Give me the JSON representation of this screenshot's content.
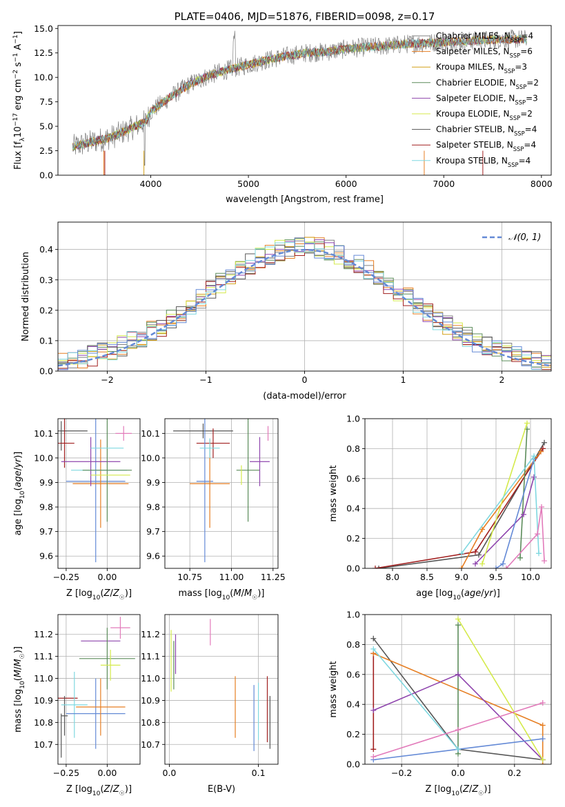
{
  "colors": {
    "Chabrier MILES": "#808080",
    "Salpeter MILES": "#e67e22",
    "Kroupa MILES": "#d4a017",
    "Chabrier ELODIE": "#5b8c5a",
    "Salpeter ELODIE": "#8e44ad",
    "Kroupa ELODIE": "#d4ea4a",
    "Chabrier STELIB": "#555555",
    "Salpeter STELIB": "#a11f1f",
    "Kroupa STELIB": "#7fd8e0",
    "blue": "#6389d6",
    "pink": "#e27aba",
    "normal": "#6389d6"
  },
  "chart_data": [
    {
      "id": "spectrum",
      "type": "line",
      "title": "PLATE=0406, MJD=51876, FIBERID=0098, z=0.17",
      "xlabel": "wavelength [Angstrom, rest frame]",
      "ylabel": "Flux [f_λ10^-17 erg cm^-2 s^-1 A^-1]",
      "xlim": [
        3050,
        8100
      ],
      "ylim": [
        0,
        15.3
      ],
      "xticks": [
        4000,
        5000,
        6000,
        7000,
        8000
      ],
      "yticks": [
        0.0,
        2.5,
        5.0,
        7.5,
        10.0,
        12.5,
        15.0
      ],
      "grid": false,
      "legend_position": "top-right",
      "legend": [
        {
          "label": "Chabrier MILES, N",
          "sub": "SSP",
          "n": "=4",
          "color": "#808080"
        },
        {
          "label": "Salpeter MILES, N",
          "sub": "SSP",
          "n": "=6",
          "color": "#e67e22"
        },
        {
          "label": "Kroupa MILES, N",
          "sub": "SSP",
          "n": "=3",
          "color": "#d4a017"
        },
        {
          "label": "Chabrier ELODIE, N",
          "sub": "SSP",
          "n": "=2",
          "color": "#5b8c5a"
        },
        {
          "label": "Salpeter ELODIE, N",
          "sub": "SSP",
          "n": "=3",
          "color": "#8e44ad"
        },
        {
          "label": "Kroupa ELODIE, N",
          "sub": "SSP",
          "n": "=2",
          "color": "#d4ea4a"
        },
        {
          "label": "Chabrier STELIB, N",
          "sub": "SSP",
          "n": "=4",
          "color": "#555555"
        },
        {
          "label": "Salpeter STELIB, N",
          "sub": "SSP",
          "n": "=4",
          "color": "#a11f1f"
        },
        {
          "label": "Kroupa STELIB, N",
          "sub": "SSP",
          "n": "=4",
          "color": "#7fd8e0"
        }
      ],
      "continuum": [
        [
          3200,
          2.9
        ],
        [
          3400,
          3.4
        ],
        [
          3600,
          3.9
        ],
        [
          3800,
          4.8
        ],
        [
          3950,
          5.5
        ],
        [
          4000,
          6.5
        ],
        [
          4200,
          8.0
        ],
        [
          4400,
          9.3
        ],
        [
          4600,
          10.2
        ],
        [
          4800,
          10.8
        ],
        [
          5000,
          11.3
        ],
        [
          5200,
          11.8
        ],
        [
          5400,
          12.2
        ],
        [
          5600,
          12.5
        ],
        [
          5800,
          12.6
        ],
        [
          6000,
          12.9
        ],
        [
          6200,
          13.1
        ],
        [
          6400,
          13.2
        ],
        [
          6600,
          13.4
        ],
        [
          6800,
          13.5
        ],
        [
          7000,
          13.6
        ],
        [
          7200,
          13.7
        ],
        [
          7400,
          13.8
        ],
        [
          7600,
          13.9
        ],
        [
          7800,
          13.9
        ]
      ]
    },
    {
      "id": "residuals",
      "type": "histogram",
      "xlabel": "(data-model)/error",
      "ylabel": "Normed distribution",
      "xlim": [
        -2.5,
        2.5
      ],
      "ylim": [
        0,
        0.49
      ],
      "xticks": [
        -2,
        -1,
        0,
        1,
        2
      ],
      "yticks": [
        0.0,
        0.1,
        0.2,
        0.3,
        0.4
      ],
      "grid": true,
      "legend_position": "top-right",
      "legend": [
        "𝒩(0, 1)"
      ],
      "bin_width": 0.1,
      "series_colors": [
        "#808080",
        "#e67e22",
        "#d4a017",
        "#5b8c5a",
        "#8e44ad",
        "#d4ea4a",
        "#555555",
        "#a11f1f",
        "#7fd8e0",
        "#6389d6"
      ]
    },
    {
      "id": "age_vs_Z",
      "type": "errorbar",
      "xlabel": "Z [log10(Z/Z☉)]",
      "ylabel": "age [log10(age/yr)]",
      "xlim": [
        -0.3,
        0.2
      ],
      "ylim": [
        9.55,
        10.16
      ],
      "xticks": [
        -0.25,
        0.0
      ],
      "yticks": [
        9.6,
        9.7,
        9.8,
        9.9,
        10.0,
        10.1
      ],
      "grid": true,
      "points": [
        {
          "x": -0.28,
          "xerr": 0.0,
          "y": 10.09,
          "yerr": 0.06,
          "color": "#555555"
        },
        {
          "x": -0.25,
          "xerr": 0.13,
          "y": 10.11,
          "yerr": 0.0,
          "color": "#555555"
        },
        {
          "x": -0.26,
          "xerr": 0.06,
          "y": 10.06,
          "yerr": 0.1,
          "color": "#a11f1f"
        },
        {
          "x": -0.07,
          "xerr": 0.18,
          "y": 9.905,
          "yerr": 0.33,
          "color": "#6389d6"
        },
        {
          "x": -0.04,
          "xerr": 0.17,
          "y": 9.895,
          "yerr": 0.18,
          "color": "#e67e22"
        },
        {
          "x": -0.05,
          "xerr": 0.17,
          "y": 9.95,
          "yerr": 0.0,
          "color": "#7fd8e0"
        },
        {
          "x": -0.1,
          "xerr": 0.18,
          "y": 9.985,
          "yerr": 0.1,
          "color": "#8e44ad"
        },
        {
          "x": 0.0,
          "xerr": 0.15,
          "y": 9.95,
          "yerr": 0.21,
          "color": "#5b8c5a"
        },
        {
          "x": 0.0,
          "xerr": 0.1,
          "y": 10.04,
          "yerr": 0.0,
          "color": "#7fd8e0"
        },
        {
          "x": 0.02,
          "xerr": 0.12,
          "y": 9.93,
          "yerr": 0.0,
          "color": "#d4ea4a"
        },
        {
          "x": 0.1,
          "xerr": 0.05,
          "y": 10.1,
          "yerr": 0.03,
          "color": "#e27aba"
        }
      ]
    },
    {
      "id": "age_vs_mass",
      "type": "errorbar",
      "xlabel": "mass [log10(M/M☉)]",
      "ylabel": "",
      "xlim": [
        10.6,
        11.28
      ],
      "ylim": [
        9.55,
        10.16
      ],
      "xticks": [
        10.75,
        11.0,
        11.25
      ],
      "yticks": [
        9.6,
        9.7,
        9.8,
        9.9,
        10.0,
        10.1
      ],
      "grid": true,
      "points": [
        {
          "x": 10.83,
          "xerr": 0.18,
          "y": 10.11,
          "yerr": 0.03,
          "color": "#555555"
        },
        {
          "x": 10.89,
          "xerr": 0.1,
          "y": 10.06,
          "yerr": 0.06,
          "color": "#a11f1f"
        },
        {
          "x": 10.84,
          "xerr": 0.05,
          "y": 9.905,
          "yerr": 0.33,
          "color": "#6389d6"
        },
        {
          "x": 10.87,
          "xerr": 0.12,
          "y": 9.895,
          "yerr": 0.18,
          "color": "#e67e22"
        },
        {
          "x": 10.87,
          "xerr": 0.06,
          "y": 10.04,
          "yerr": 0.04,
          "color": "#7fd8e0"
        },
        {
          "x": 11.1,
          "xerr": 0.07,
          "y": 9.95,
          "yerr": 0.21,
          "color": "#5b8c5a"
        },
        {
          "x": 11.17,
          "xerr": 0.06,
          "y": 9.985,
          "yerr": 0.1,
          "color": "#8e44ad"
        },
        {
          "x": 11.06,
          "xerr": 0.0,
          "y": 9.93,
          "yerr": 0.04,
          "color": "#d4ea4a"
        },
        {
          "x": 11.22,
          "xerr": 0.0,
          "y": 10.1,
          "yerr": 0.03,
          "color": "#e27aba"
        }
      ]
    },
    {
      "id": "sfh_age",
      "type": "line",
      "xlabel": "age [log10(age/yr)]",
      "ylabel": "mass weight",
      "xlim": [
        7.6,
        10.3
      ],
      "ylim": [
        0,
        1.0
      ],
      "xticks": [
        8.0,
        8.5,
        9.0,
        9.5,
        10.0
      ],
      "yticks": [
        0.0,
        0.2,
        0.4,
        0.6,
        0.8,
        1.0
      ],
      "grid": true,
      "series": [
        {
          "color": "#555555",
          "x": [
            7.8,
            9.25,
            10.2
          ],
          "y": [
            0.0,
            0.09,
            0.84
          ]
        },
        {
          "color": "#a11f1f",
          "x": [
            7.75,
            9.2,
            10.18
          ],
          "y": [
            0.0,
            0.11,
            0.8
          ]
        },
        {
          "color": "#e67e22",
          "x": [
            9.0,
            9.3,
            10.15
          ],
          "y": [
            0.0,
            0.26,
            0.78
          ]
        },
        {
          "color": "#5b8c5a",
          "x": [
            9.85,
            9.95
          ],
          "y": [
            0.07,
            0.93
          ]
        },
        {
          "color": "#8e44ad",
          "x": [
            9.2,
            9.9,
            10.05
          ],
          "y": [
            0.03,
            0.36,
            0.61
          ]
        },
        {
          "color": "#d4ea4a",
          "x": [
            9.3,
            9.95
          ],
          "y": [
            0.03,
            0.97
          ]
        },
        {
          "color": "#6389d6",
          "x": [
            9.5,
            9.6,
            10.05
          ],
          "y": [
            0.0,
            0.03,
            0.73
          ]
        },
        {
          "color": "#7fd8e0",
          "x": [
            9.0,
            10.05,
            10.12
          ],
          "y": [
            0.1,
            0.75,
            0.1
          ]
        },
        {
          "color": "#e27aba",
          "x": [
            9.65,
            10.1,
            10.16,
            10.2
          ],
          "y": [
            0.0,
            0.23,
            0.41,
            0.05
          ]
        }
      ]
    },
    {
      "id": "mass_vs_Z",
      "type": "errorbar",
      "xlabel": "Z [log10(Z/Z☉)]",
      "ylabel": "mass [log10(M/M☉)]",
      "xlim": [
        -0.3,
        0.2
      ],
      "ylim": [
        10.61,
        11.29
      ],
      "xticks": [
        -0.25,
        0.0
      ],
      "yticks": [
        10.7,
        10.8,
        10.9,
        11.0,
        11.1,
        11.2
      ],
      "grid": true,
      "points": [
        {
          "x": -0.28,
          "xerr": 0.0,
          "y": 10.74,
          "yerr": 0.1,
          "color": "#555555"
        },
        {
          "x": -0.24,
          "xerr": 0.06,
          "y": 10.91,
          "yerr": 0.0,
          "color": "#a11f1f"
        },
        {
          "x": -0.26,
          "xerr": 0.02,
          "y": 10.83,
          "yerr": 0.09,
          "color": "#555555"
        },
        {
          "x": -0.2,
          "xerr": 0.08,
          "y": 10.88,
          "yerr": 0.15,
          "color": "#7fd8e0"
        },
        {
          "x": -0.07,
          "xerr": 0.18,
          "y": 10.84,
          "yerr": 0.16,
          "color": "#6389d6"
        },
        {
          "x": -0.04,
          "xerr": 0.15,
          "y": 10.87,
          "yerr": 0.13,
          "color": "#e67e22"
        },
        {
          "x": -0.04,
          "xerr": 0.12,
          "y": 11.17,
          "yerr": 0.0,
          "color": "#8e44ad"
        },
        {
          "x": 0.0,
          "xerr": 0.17,
          "y": 11.09,
          "yerr": 0.14,
          "color": "#5b8c5a"
        },
        {
          "x": 0.02,
          "xerr": 0.06,
          "y": 11.06,
          "yerr": 0.07,
          "color": "#d4ea4a"
        },
        {
          "x": 0.08,
          "xerr": 0.06,
          "y": 11.23,
          "yerr": 0.05,
          "color": "#e27aba"
        }
      ]
    },
    {
      "id": "mass_vs_ebv",
      "type": "errorbar",
      "xlabel": "E(B-V)",
      "ylabel": "",
      "xlim": [
        -0.005,
        0.122
      ],
      "ylim": [
        10.61,
        11.29
      ],
      "xticks": [
        0.0,
        0.1
      ],
      "yticks": [
        10.7,
        10.8,
        10.9,
        11.0,
        11.1,
        11.2
      ],
      "grid": true,
      "points": [
        {
          "x": 0.002,
          "xerr": 0.0,
          "y": 11.08,
          "yerr": 0.14,
          "color": "#d4ea4a"
        },
        {
          "x": 0.005,
          "xerr": 0.0,
          "y": 11.06,
          "yerr": 0.11,
          "color": "#5b8c5a"
        },
        {
          "x": 0.007,
          "xerr": 0.0,
          "y": 11.11,
          "yerr": 0.09,
          "color": "#8e44ad"
        },
        {
          "x": 0.046,
          "xerr": 0.0,
          "y": 11.21,
          "yerr": 0.06,
          "color": "#e27aba"
        },
        {
          "x": 0.074,
          "xerr": 0.0,
          "y": 10.87,
          "yerr": 0.14,
          "color": "#e67e22"
        },
        {
          "x": 0.095,
          "xerr": 0.0,
          "y": 10.82,
          "yerr": 0.15,
          "color": "#6389d6"
        },
        {
          "x": 0.1,
          "xerr": 0.0,
          "y": 10.85,
          "yerr": 0.13,
          "color": "#7fd8e0"
        },
        {
          "x": 0.11,
          "xerr": 0.0,
          "y": 10.86,
          "yerr": 0.15,
          "color": "#a11f1f"
        },
        {
          "x": 0.113,
          "xerr": 0.0,
          "y": 10.8,
          "yerr": 0.12,
          "color": "#555555"
        }
      ]
    },
    {
      "id": "sfh_Z",
      "type": "line",
      "xlabel": "Z [log10(Z/Z☉)]",
      "ylabel": "mass weight",
      "xlim": [
        -0.33,
        0.33
      ],
      "ylim": [
        0,
        1.0
      ],
      "xticks": [
        -0.2,
        0.0,
        0.2
      ],
      "yticks": [
        0.0,
        0.2,
        0.4,
        0.6,
        0.8,
        1.0
      ],
      "grid": true,
      "series": [
        {
          "color": "#555555",
          "x": [
            -0.3,
            0.0,
            0.3
          ],
          "y": [
            0.84,
            0.1,
            0.03
          ]
        },
        {
          "color": "#a11f1f",
          "x": [
            -0.3,
            -0.3
          ],
          "y": [
            0.1,
            0.74
          ]
        },
        {
          "color": "#e67e22",
          "x": [
            -0.3,
            0.3,
            0.3
          ],
          "y": [
            0.74,
            0.26,
            0.0
          ]
        },
        {
          "color": "#5b8c5a",
          "x": [
            0.0,
            0.0
          ],
          "y": [
            0.07,
            0.93
          ]
        },
        {
          "color": "#8e44ad",
          "x": [
            -0.3,
            0.0,
            0.3
          ],
          "y": [
            0.36,
            0.6,
            0.03
          ]
        },
        {
          "color": "#d4ea4a",
          "x": [
            0.0,
            0.3
          ],
          "y": [
            0.97,
            0.03
          ]
        },
        {
          "color": "#6389d6",
          "x": [
            -0.3,
            0.0,
            0.3
          ],
          "y": [
            0.03,
            0.1,
            0.17
          ]
        },
        {
          "color": "#7fd8e0",
          "x": [
            -0.3,
            0.0
          ],
          "y": [
            0.77,
            0.1
          ]
        },
        {
          "color": "#e27aba",
          "x": [
            -0.3,
            0.0,
            0.3
          ],
          "y": [
            0.05,
            0.23,
            0.41
          ]
        }
      ]
    }
  ]
}
